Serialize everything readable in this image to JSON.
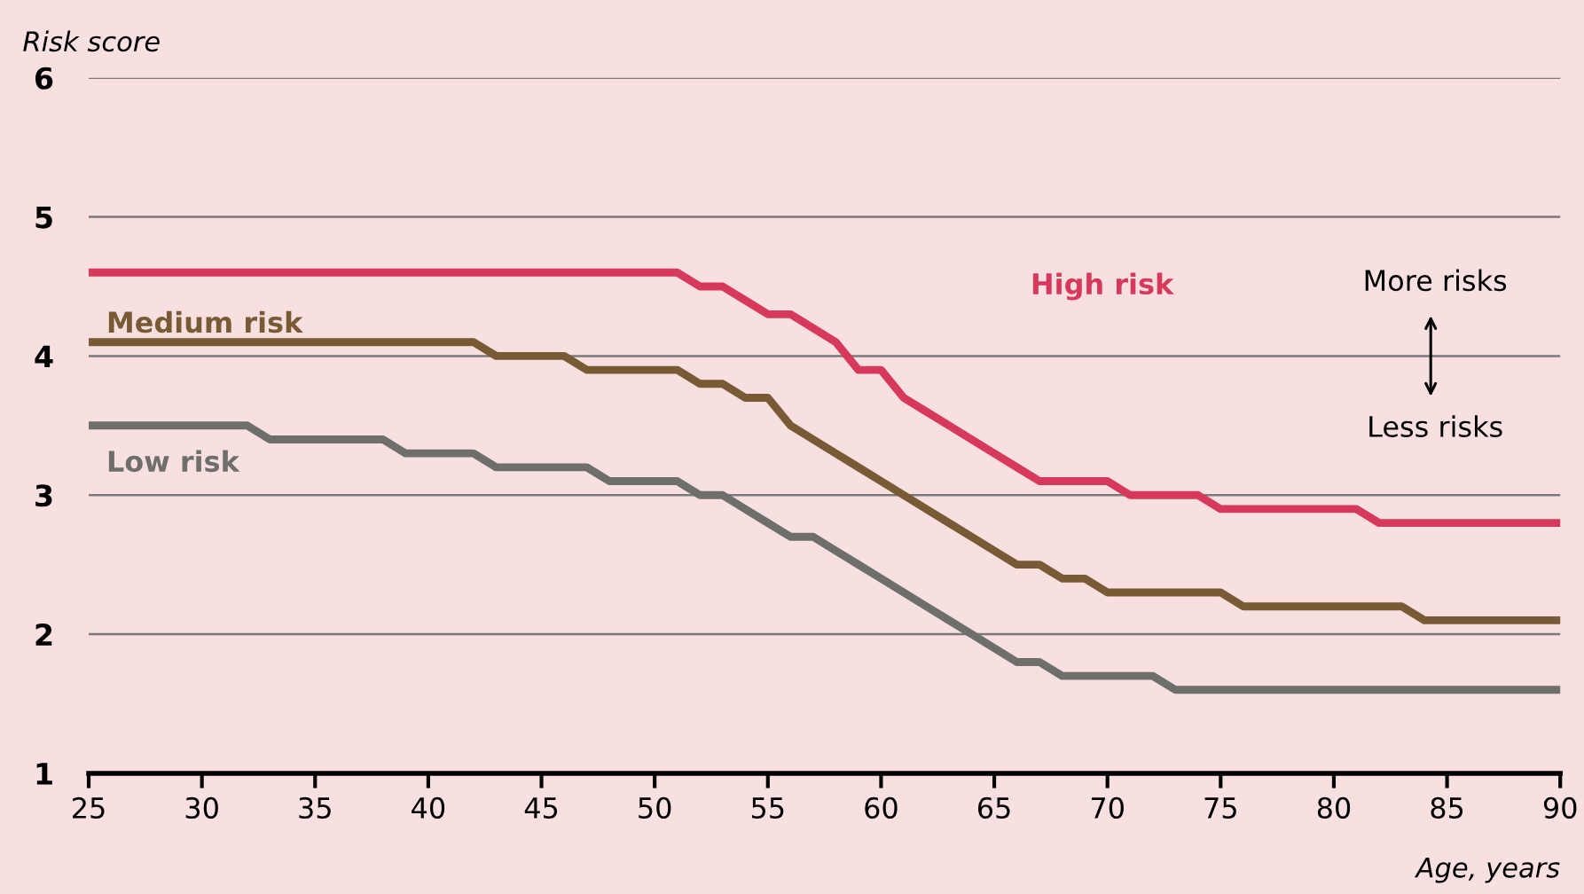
{
  "chart_data": {
    "type": "line",
    "ylabel": "Risk score",
    "xlabel": "Age, years",
    "x": [
      25,
      26,
      27,
      28,
      29,
      30,
      31,
      32,
      33,
      34,
      35,
      36,
      37,
      38,
      39,
      40,
      41,
      42,
      43,
      44,
      45,
      46,
      47,
      48,
      49,
      50,
      51,
      52,
      53,
      54,
      55,
      56,
      57,
      58,
      59,
      60,
      61,
      62,
      63,
      64,
      65,
      66,
      67,
      68,
      69,
      70,
      71,
      72,
      73,
      74,
      75,
      76,
      77,
      78,
      79,
      80,
      81,
      82,
      83,
      84,
      85,
      86,
      87,
      88,
      89,
      90
    ],
    "series": [
      {
        "name": "High risk",
        "color": "#d6395b",
        "values": [
          4.6,
          4.6,
          4.6,
          4.6,
          4.6,
          4.6,
          4.6,
          4.6,
          4.6,
          4.6,
          4.6,
          4.6,
          4.6,
          4.6,
          4.6,
          4.6,
          4.6,
          4.6,
          4.6,
          4.6,
          4.6,
          4.6,
          4.6,
          4.6,
          4.6,
          4.6,
          4.6,
          4.5,
          4.5,
          4.4,
          4.3,
          4.3,
          4.2,
          4.1,
          3.9,
          3.9,
          3.7,
          3.6,
          3.5,
          3.4,
          3.3,
          3.2,
          3.1,
          3.1,
          3.1,
          3.1,
          3.0,
          3.0,
          3.0,
          3.0,
          2.9,
          2.9,
          2.9,
          2.9,
          2.9,
          2.9,
          2.9,
          2.8,
          2.8,
          2.8,
          2.8,
          2.8,
          2.8,
          2.8,
          2.8,
          2.8
        ]
      },
      {
        "name": "Medium risk",
        "color": "#785a35",
        "values": [
          4.1,
          4.1,
          4.1,
          4.1,
          4.1,
          4.1,
          4.1,
          4.1,
          4.1,
          4.1,
          4.1,
          4.1,
          4.1,
          4.1,
          4.1,
          4.1,
          4.1,
          4.1,
          4.0,
          4.0,
          4.0,
          4.0,
          3.9,
          3.9,
          3.9,
          3.9,
          3.9,
          3.8,
          3.8,
          3.7,
          3.7,
          3.5,
          3.4,
          3.3,
          3.2,
          3.1,
          3.0,
          2.9,
          2.8,
          2.7,
          2.6,
          2.5,
          2.5,
          2.4,
          2.4,
          2.3,
          2.3,
          2.3,
          2.3,
          2.3,
          2.3,
          2.2,
          2.2,
          2.2,
          2.2,
          2.2,
          2.2,
          2.2,
          2.2,
          2.1,
          2.1,
          2.1,
          2.1,
          2.1,
          2.1,
          2.1
        ]
      },
      {
        "name": "Low risk",
        "color": "#6e6e6a",
        "values": [
          3.5,
          3.5,
          3.5,
          3.5,
          3.5,
          3.5,
          3.5,
          3.5,
          3.4,
          3.4,
          3.4,
          3.4,
          3.4,
          3.4,
          3.3,
          3.3,
          3.3,
          3.3,
          3.2,
          3.2,
          3.2,
          3.2,
          3.2,
          3.1,
          3.1,
          3.1,
          3.1,
          3.0,
          3.0,
          2.9,
          2.8,
          2.7,
          2.7,
          2.6,
          2.5,
          2.4,
          2.3,
          2.2,
          2.1,
          2.0,
          1.9,
          1.8,
          1.8,
          1.7,
          1.7,
          1.7,
          1.7,
          1.7,
          1.6,
          1.6,
          1.6,
          1.6,
          1.6,
          1.6,
          1.6,
          1.6,
          1.6,
          1.6,
          1.6,
          1.6,
          1.6,
          1.6,
          1.6,
          1.6,
          1.6,
          1.6
        ]
      }
    ],
    "annotations": [
      "More risks",
      "Less risks"
    ],
    "xlim": [
      25,
      90
    ],
    "xticks": [
      25,
      30,
      35,
      40,
      45,
      50,
      55,
      60,
      65,
      70,
      75,
      80,
      85,
      90
    ],
    "ylim": [
      1,
      6
    ],
    "yticks": [
      1,
      2,
      3,
      4,
      5,
      6
    ],
    "grid": "y",
    "legend": false,
    "marker": "none",
    "line_style": "solid"
  }
}
